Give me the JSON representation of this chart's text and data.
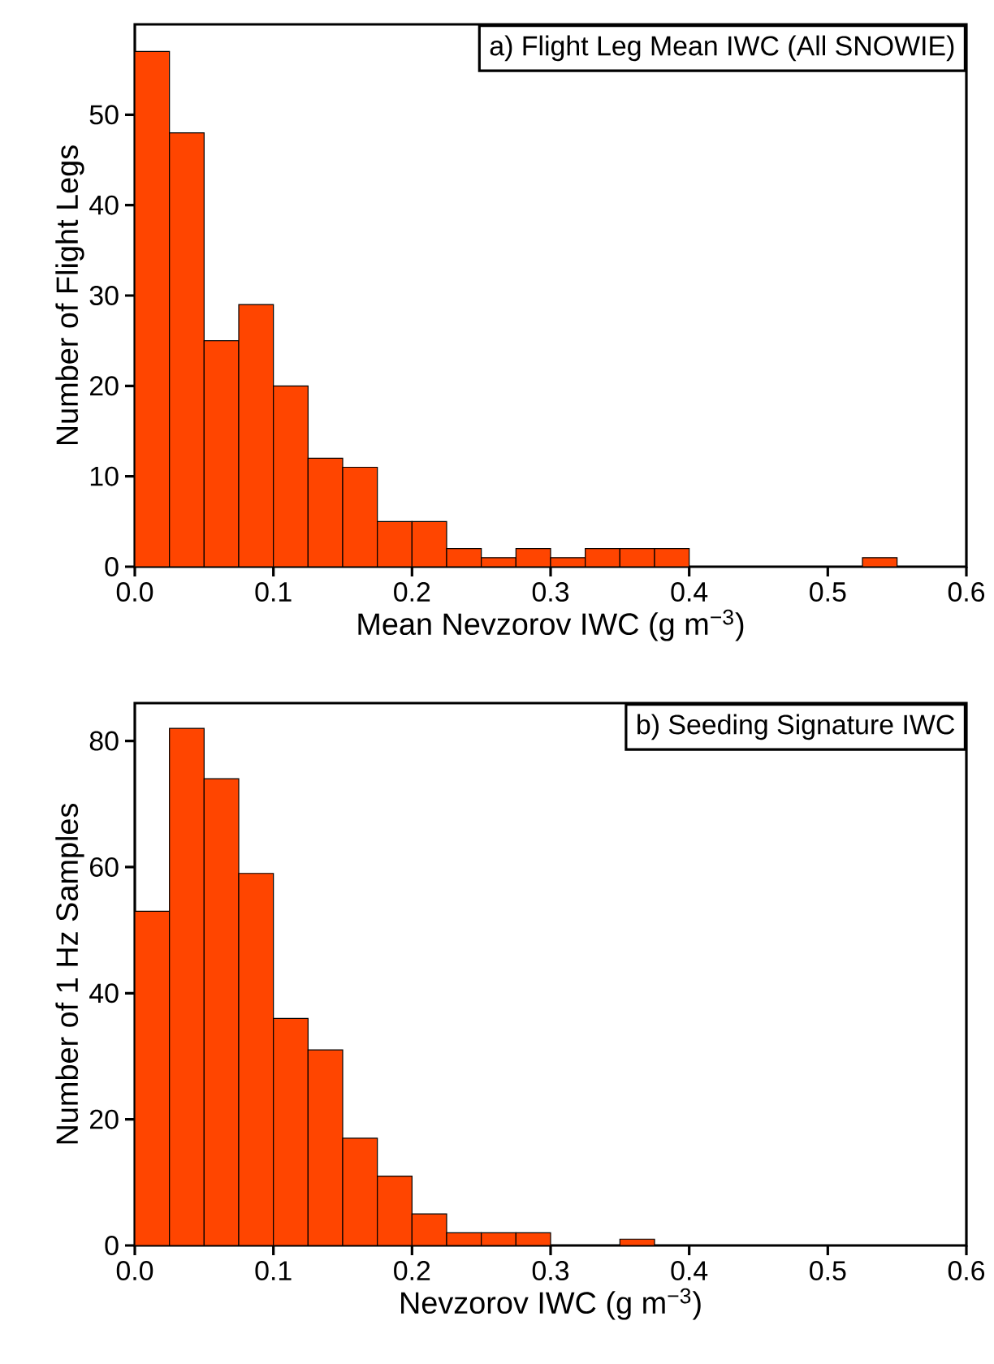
{
  "chart_data": [
    {
      "type": "histogram",
      "title": "a) Flight Leg Mean IWC (All SNOWIE)",
      "xlabel": "Mean Nevzorov IWC (g m$^{−3}$)",
      "ylabel": "Number of Flight Legs",
      "color": "#ff4500",
      "bins": [
        0,
        0.025,
        0.05,
        0.075,
        0.1,
        0.125,
        0.15,
        0.175,
        0.2,
        0.225,
        0.25,
        0.275,
        0.3,
        0.325,
        0.35,
        0.375,
        0.4,
        0.425,
        0.45,
        0.475,
        0.5,
        0.525,
        0.55
      ],
      "values": [
        57,
        48,
        25,
        29,
        20,
        12,
        11,
        5,
        5,
        2,
        1,
        2,
        1,
        2,
        2,
        2,
        0,
        0,
        0,
        0,
        0,
        1
      ],
      "xlim": [
        0,
        0.6
      ],
      "ylim": [
        0,
        60
      ],
      "xticks": [
        {
          "value": 0,
          "label": "0.0"
        },
        0.1,
        0.2,
        0.3,
        0.4,
        0.5,
        0.6
      ],
      "yticks": [
        0,
        10,
        20,
        30,
        40,
        50
      ]
    },
    {
      "type": "histogram",
      "title": "b) Seeding Signature IWC",
      "xlabel": "Nevzorov IWC (g m$^{−3}$)",
      "ylabel": "Number of 1 Hz Samples",
      "color": "#ff4500",
      "bins": [
        0,
        0.025,
        0.05,
        0.075,
        0.1,
        0.125,
        0.15,
        0.175,
        0.2,
        0.225,
        0.25,
        0.275,
        0.3,
        0.325,
        0.35,
        0.375
      ],
      "values": [
        53,
        82,
        74,
        59,
        36,
        31,
        17,
        11,
        5,
        2,
        2,
        2,
        0,
        0,
        1
      ],
      "xlim": [
        0,
        0.6
      ],
      "ylim": [
        0,
        86
      ],
      "xticks": [
        {
          "value": 0,
          "label": "0.0"
        },
        0.1,
        0.2,
        0.3,
        0.4,
        0.5,
        0.6
      ],
      "yticks": [
        0,
        20,
        40,
        60,
        80
      ]
    }
  ]
}
